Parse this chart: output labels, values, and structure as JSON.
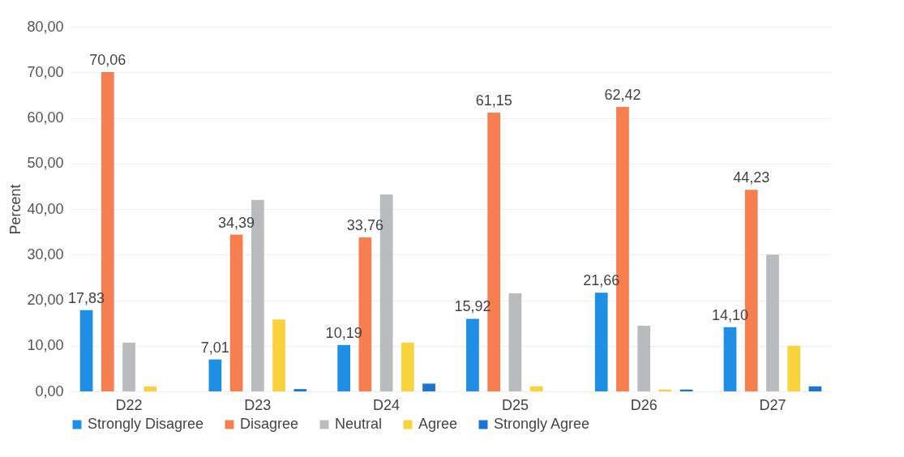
{
  "chart_data": {
    "type": "bar",
    "ylabel": "Percent",
    "categories": [
      "D22",
      "D23",
      "D24",
      "D25",
      "D26",
      "D27"
    ],
    "series": [
      {
        "name": "Strongly Disagree",
        "color": "#1f8fe5",
        "values": [
          17.83,
          7.01,
          10.19,
          15.92,
          21.66,
          14.1
        ],
        "value_labels": [
          "17,83",
          "7,01",
          "10,19",
          "15,92",
          "21,66",
          "14,10"
        ]
      },
      {
        "name": "Disagree",
        "color": "#f77f4f",
        "values": [
          70.06,
          34.39,
          33.76,
          61.15,
          62.42,
          44.23
        ],
        "value_labels": [
          "70,06",
          "34,39",
          "33,76",
          "61,15",
          "62,42",
          "44,23"
        ]
      },
      {
        "name": "Neutral",
        "color": "#b9bbbd",
        "values": [
          10.7,
          42.0,
          43.2,
          21.5,
          14.4,
          30.0
        ]
      },
      {
        "name": "Agree",
        "color": "#f9d23c",
        "values": [
          1.1,
          15.8,
          10.7,
          1.1,
          0.4,
          10.0
        ]
      },
      {
        "name": "Strongly Agree",
        "color": "#1a75d2",
        "values": [
          0,
          0.5,
          1.7,
          0,
          0.4,
          1.1
        ]
      }
    ],
    "ylim": [
      0,
      80
    ],
    "yticks": [
      {
        "value": 0,
        "label": "0,00"
      },
      {
        "value": 10,
        "label": "10,00"
      },
      {
        "value": 20,
        "label": "20,00"
      },
      {
        "value": 30,
        "label": "30,00"
      },
      {
        "value": 40,
        "label": "40,00"
      },
      {
        "value": 50,
        "label": "50,00"
      },
      {
        "value": 60,
        "label": "60,00"
      },
      {
        "value": 70,
        "label": "70,00"
      },
      {
        "value": 80,
        "label": "80,00"
      }
    ],
    "grid": "y",
    "legend": "bottom"
  }
}
